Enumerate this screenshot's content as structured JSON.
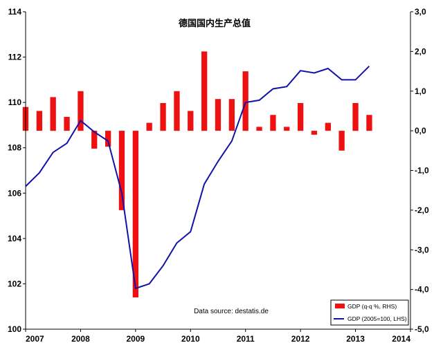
{
  "chart_data": {
    "type": "bar+line",
    "title": "德国国内生产总值",
    "annotation": "Data source: destatis.de",
    "x_tick_labels": [
      "2007",
      "2008",
      "2009",
      "2010",
      "2011",
      "2012",
      "2013",
      "2014"
    ],
    "left_axis": {
      "range": [
        100,
        114
      ],
      "ticks": [
        "100",
        "102",
        "104",
        "106",
        "108",
        "110",
        "112",
        "114"
      ]
    },
    "right_axis": {
      "range": [
        -5.0,
        3.0
      ],
      "ticks": [
        "3,0",
        "2,0",
        "1,0",
        "0,0",
        "-1,0",
        "-2,0",
        "-3,0",
        "-4,0",
        "-5,0"
      ]
    },
    "grid": false,
    "legend_position": "bottom-right",
    "series": [
      {
        "name": "GDP (q-q %, RHS)",
        "kind": "bar",
        "axis": "right",
        "color": "#ee1111",
        "x": [
          "2007Q1",
          "2007Q2",
          "2007Q3",
          "2007Q4",
          "2008Q1",
          "2008Q2",
          "2008Q3",
          "2008Q4",
          "2009Q1",
          "2009Q2",
          "2009Q3",
          "2009Q4",
          "2010Q1",
          "2010Q2",
          "2010Q3",
          "2010Q4",
          "2011Q1",
          "2011Q2",
          "2011Q3",
          "2011Q4",
          "2012Q1",
          "2012Q2",
          "2012Q3",
          "2012Q4",
          "2013Q1",
          "2013Q2"
        ],
        "values": [
          0.6,
          0.5,
          0.85,
          0.35,
          1.0,
          -0.45,
          -0.4,
          -2.0,
          -4.2,
          0.2,
          0.7,
          1.0,
          0.5,
          2.0,
          0.8,
          0.8,
          1.5,
          0.1,
          0.4,
          0.1,
          0.7,
          -0.1,
          0.2,
          -0.5,
          0.7,
          0.4
        ]
      },
      {
        "name": "GDP (2005=100, LHS)",
        "kind": "line",
        "axis": "left",
        "color": "#1111aa",
        "x": [
          "2007Q1",
          "2007Q2",
          "2007Q3",
          "2007Q4",
          "2008Q1",
          "2008Q2",
          "2008Q3",
          "2008Q4",
          "2009Q1",
          "2009Q2",
          "2009Q3",
          "2009Q4",
          "2010Q1",
          "2010Q2",
          "2010Q3",
          "2010Q4",
          "2011Q1",
          "2011Q2",
          "2011Q3",
          "2011Q4",
          "2012Q1",
          "2012Q2",
          "2012Q3",
          "2012Q4",
          "2013Q1",
          "2013Q2"
        ],
        "values": [
          106.3,
          106.9,
          107.8,
          108.2,
          109.2,
          108.7,
          108.3,
          106.0,
          101.8,
          102.0,
          102.8,
          103.8,
          104.3,
          106.4,
          107.4,
          108.3,
          110.0,
          110.1,
          110.6,
          110.7,
          111.4,
          111.3,
          111.5,
          111.0,
          111.0,
          111.6
        ]
      }
    ]
  }
}
